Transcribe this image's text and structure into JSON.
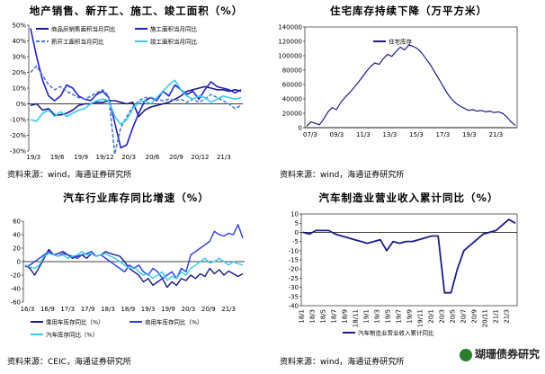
{
  "watermark": "瑚珊债券研究",
  "chart_data": [
    {
      "type": "line",
      "title": "地产销售、新开工、施工、竣工面积（%）",
      "source": "资料来源：wind，海通证券研究所",
      "ylim": [
        -30,
        50
      ],
      "yticks": [
        "50%",
        "40%",
        "30%",
        "20%",
        "10%",
        "0%",
        "-10%",
        "-20%",
        "-30%"
      ],
      "xticks": [
        "19/3",
        "19/6",
        "19/9",
        "19/12",
        "20/3",
        "20/6",
        "20/9",
        "20/12",
        "21/3"
      ],
      "series": [
        {
          "name": "商品房销售面积当月同比",
          "color": "#1c1c8c",
          "dash": "",
          "width": 1.6,
          "values": [
            -1,
            0,
            -4,
            -3,
            -7,
            -7,
            -6,
            -4,
            -1,
            0,
            0,
            1,
            1,
            2,
            2,
            1,
            0,
            1,
            -8,
            -4,
            -2,
            -1,
            0,
            1,
            3,
            5,
            8,
            9,
            10,
            11,
            10,
            9,
            9,
            8,
            9,
            8
          ]
        },
        {
          "name": "施工面积当月同比",
          "color": "#2020d8",
          "dash": "",
          "width": 1.6,
          "values": [
            48,
            30,
            15,
            5,
            2,
            5,
            12,
            10,
            5,
            3,
            2,
            6,
            8,
            4,
            -12,
            -28,
            -26,
            -15,
            -6,
            2,
            4,
            2,
            8,
            5,
            12,
            9,
            6,
            8,
            3,
            9,
            14,
            11,
            10,
            9,
            7,
            9
          ]
        },
        {
          "name": "新开工面积当月同比",
          "color": "#4a7ad8",
          "dash": "4,2",
          "width": 1.6,
          "values": [
            20,
            24,
            18,
            12,
            9,
            11,
            8,
            6,
            4,
            3,
            5,
            7,
            9,
            5,
            -32,
            -15,
            -8,
            -2,
            2,
            4,
            4,
            3,
            2,
            3,
            2,
            3,
            1,
            3,
            1,
            3,
            6,
            4,
            2,
            0,
            -3,
            -1
          ]
        },
        {
          "name": "竣工面积当月同比",
          "color": "#33ccf0",
          "dash": "",
          "width": 1.6,
          "values": [
            -10,
            -11,
            -6,
            -4,
            -8,
            -5,
            -8,
            -6,
            -4,
            -3,
            0,
            2,
            3,
            2,
            -8,
            -13,
            -10,
            -3,
            1,
            2,
            0,
            4,
            8,
            12,
            15,
            9,
            5,
            3,
            5,
            4,
            1,
            3,
            5,
            4,
            3,
            4
          ]
        }
      ]
    },
    {
      "type": "line",
      "title": "住宅库存持续下降（万平方米）",
      "source": "资料来源：wind，海通证券研究所",
      "ylim": [
        0,
        140000
      ],
      "yticks": [
        "140000",
        "120000",
        "100000",
        "80000",
        "60000",
        "40000",
        "20000",
        "0"
      ],
      "xticks": [
        "07/3",
        "09/3",
        "11/3",
        "13/3",
        "15/3",
        "17/3",
        "19/3",
        "21/3"
      ],
      "series": [
        {
          "name": "住宅库存",
          "color": "#1c1c8c",
          "dash": "",
          "width": 1.2,
          "values": [
            2000,
            8000,
            6000,
            4000,
            12000,
            22000,
            28000,
            25000,
            35000,
            42000,
            48000,
            55000,
            62000,
            70000,
            78000,
            85000,
            90000,
            88000,
            96000,
            102000,
            99000,
            106000,
            112000,
            108000,
            115000,
            113000,
            110000,
            104000,
            96000,
            88000,
            78000,
            68000,
            58000,
            48000,
            40000,
            34000,
            30000,
            27000,
            24000,
            25000,
            23000,
            24000,
            22000,
            23000,
            21000,
            22000,
            20000,
            15000,
            8000,
            3000
          ]
        }
      ]
    },
    {
      "type": "line",
      "title": "汽车行业库存同比增速（%）",
      "source": "资料来源：CEIC，海通证券研究所",
      "ylim": [
        -60,
        60
      ],
      "yticks": [
        "60",
        "40",
        "20",
        "0",
        "-20",
        "-40",
        "-60"
      ],
      "xticks": [
        "16/3",
        "16/9",
        "17/3",
        "17/9",
        "18/3",
        "18/9",
        "19/3",
        "19/9",
        "20/3",
        "20/9",
        "21/3"
      ],
      "series": [
        {
          "name": "乘用车库存同比（%）",
          "color": "#1c1c8c",
          "dash": "",
          "width": 1.4,
          "values": [
            -5,
            -10,
            -20,
            -8,
            5,
            18,
            10,
            12,
            15,
            10,
            5,
            8,
            10,
            5,
            12,
            8,
            10,
            15,
            12,
            10,
            8,
            0,
            -10,
            -15,
            -20,
            -30,
            -25,
            -35,
            -30,
            -25,
            -38,
            -30,
            -35,
            -25,
            -28,
            -20,
            -25,
            -18,
            -22,
            -10,
            -18,
            -12,
            -20,
            -14,
            -18,
            -22,
            -18
          ]
        },
        {
          "name": "商用车库存同比（%）",
          "color": "#2a3de8",
          "dash": "",
          "width": 1.4,
          "values": [
            -8,
            -5,
            0,
            5,
            10,
            15,
            10,
            8,
            12,
            10,
            8,
            5,
            10,
            12,
            15,
            8,
            10,
            5,
            0,
            -5,
            -10,
            -15,
            -5,
            -10,
            -5,
            -15,
            -20,
            -10,
            -15,
            -25,
            -20,
            -15,
            -25,
            -10,
            -15,
            10,
            15,
            20,
            25,
            30,
            45,
            40,
            38,
            42,
            40,
            55,
            35
          ]
        },
        {
          "name": "汽车库存同比（%）",
          "color": "#33ccf0",
          "dash": "",
          "width": 1.4,
          "values": [
            -5,
            -8,
            -10,
            -5,
            8,
            12,
            10,
            8,
            10,
            5,
            8,
            10,
            15,
            10,
            12,
            8,
            10,
            12,
            8,
            5,
            0,
            -5,
            -10,
            -8,
            -15,
            -20,
            -18,
            -25,
            -20,
            -15,
            -28,
            -22,
            -25,
            -15,
            -20,
            -10,
            -5,
            0,
            5,
            -2,
            0,
            5,
            0,
            -5,
            0,
            -3,
            -5
          ]
        }
      ]
    },
    {
      "type": "line",
      "title": "汽车制造业营业收入累计同比（%）",
      "source": "资料来源：wind，海通证券研究所",
      "ylim": [
        -40,
        10
      ],
      "yticks": [
        "10",
        "5",
        "0",
        "-5",
        "-10",
        "-15",
        "-20",
        "-25",
        "-30",
        "-35",
        "-40"
      ],
      "xticks": [
        "18/1",
        "18/3",
        "18/5",
        "18/7",
        "18/9",
        "18/11",
        "19/1",
        "19/3",
        "19/5",
        "19/7",
        "19/9",
        "19/11",
        "20/1",
        "20/3",
        "20/5",
        "20/7",
        "20/9",
        "20/11",
        "21/1",
        "21/3"
      ],
      "series": [
        {
          "name": "汽车制造业营业收入累计同比",
          "color": "#1c1c8c",
          "dash": "",
          "width": 1.8,
          "values": [
            0,
            -1,
            1,
            1,
            1,
            -1,
            -2,
            -3,
            -4,
            -5,
            -6,
            -5,
            -4,
            -10,
            -5,
            -6,
            -5,
            -5,
            -4,
            -3,
            -2,
            -2,
            -33,
            -33,
            -20,
            -10,
            -7,
            -4,
            -1,
            0,
            1,
            4,
            7,
            5
          ]
        }
      ]
    }
  ]
}
